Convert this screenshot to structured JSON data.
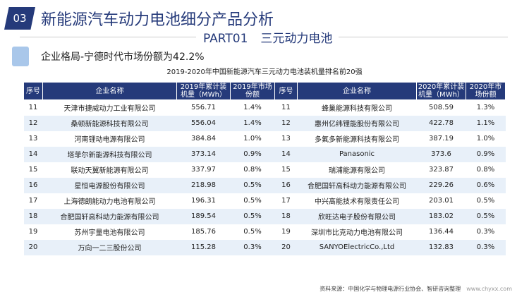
{
  "header": {
    "badge": "03",
    "title": "新能源汽车动力电池细分产品分析",
    "part": "PART01",
    "part_title": "三元动力电池"
  },
  "subtitle": "企业格局-宁德时代市场份额为42.2%",
  "table": {
    "caption": "2019-2020年中国新能源汽车三元动力电池装机量排名前20强",
    "headers": [
      "序号",
      "企业名称",
      "2019年累计装机量（MWh）",
      "2019年市场份额",
      "序号",
      "企业名称",
      "2020年累计装机量（MWh）",
      "2020年市场份额"
    ],
    "rows": [
      [
        "11",
        "天津市捷威动力工业有限公司",
        "556.71",
        "1.4%",
        "11",
        "蜂巢能源科技有限公司",
        "508.59",
        "1.3%"
      ],
      [
        "12",
        "桑顿新能源科技有限公司",
        "556.04",
        "1.4%",
        "12",
        "惠州亿纬锂能股份有限公司",
        "422.78",
        "1.1%"
      ],
      [
        "13",
        "河南锂动电源有限公司",
        "384.84",
        "1.0%",
        "13",
        "多氟多新能源科技有限公司",
        "387.19",
        "1.0%"
      ],
      [
        "14",
        "塔菲尔新能源科技有限公司",
        "373.14",
        "0.9%",
        "14",
        "Panasonic",
        "373.6",
        "0.9%"
      ],
      [
        "15",
        "联动天翼新能源有限公司",
        "337.97",
        "0.8%",
        "15",
        "瑞浦能源有限公司",
        "323.87",
        "0.8%"
      ],
      [
        "16",
        "星恒电源股份有限公司",
        "218.98",
        "0.5%",
        "16",
        "合肥国轩高科动力能源有限公司",
        "229.26",
        "0.6%"
      ],
      [
        "17",
        "上海德朗能动力电池有限公司",
        "196.31",
        "0.5%",
        "17",
        "中兴高能技术有限责任公司",
        "203.01",
        "0.5%"
      ],
      [
        "18",
        "合肥国轩高科动力能源有限公司",
        "189.54",
        "0.5%",
        "18",
        "欣旺达电子股份有限公司",
        "183.02",
        "0.5%"
      ],
      [
        "19",
        "苏州宇量电池有限公司",
        "185.76",
        "0.5%",
        "19",
        "深圳市比克动力电池有限公司",
        "136.44",
        "0.3%"
      ],
      [
        "20",
        "万向一二三股份公司",
        "115.28",
        "0.3%",
        "20",
        "SANYOElectricCo.,Ltd",
        "132.83",
        "0.3%"
      ]
    ]
  },
  "source": {
    "text": "资料来源：中国化学与物理电源行业协会、智研咨询整理",
    "url": "www.chyxx.com"
  },
  "colors": {
    "primary": "#253a7a",
    "row_alt": "#e8f0f9"
  }
}
